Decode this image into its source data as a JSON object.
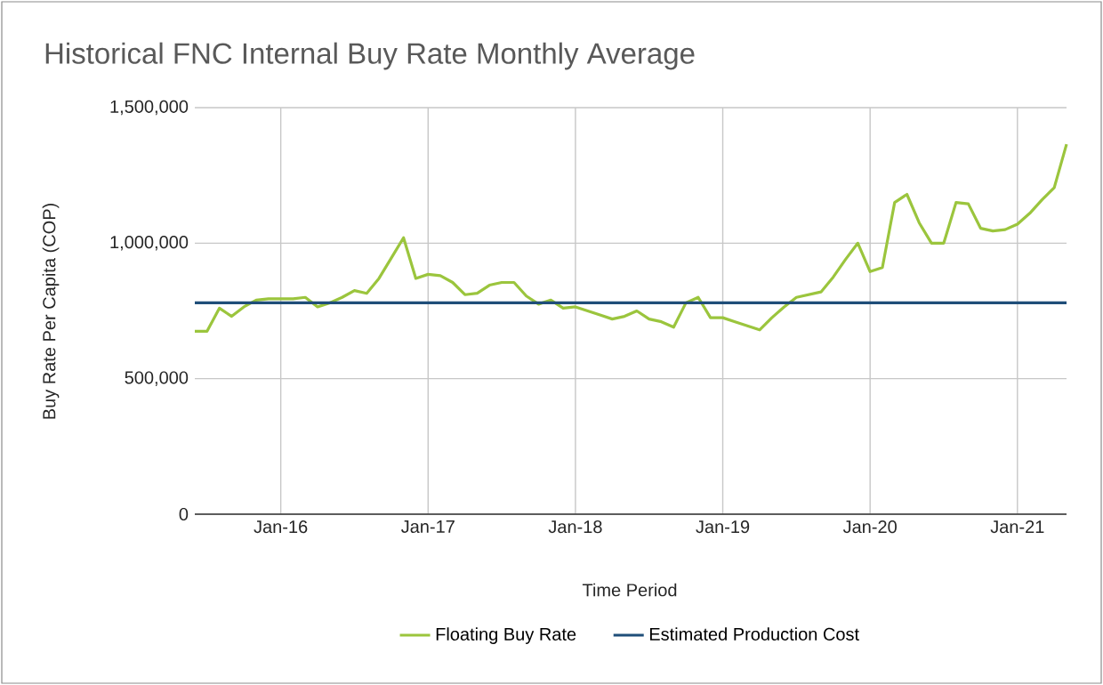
{
  "chart_data": {
    "type": "line",
    "title": "Historical FNC Internal Buy Rate Monthly Average",
    "xlabel": "Time Period",
    "ylabel": "Buy Rate Per Capita (COP)",
    "series": [
      {
        "name": "Floating Buy Rate",
        "color": "#9bc53d",
        "x": [
          "2015-06",
          "2015-07",
          "2015-08",
          "2015-09",
          "2015-10",
          "2015-11",
          "2015-12",
          "2016-01",
          "2016-02",
          "2016-03",
          "2016-04",
          "2016-05",
          "2016-06",
          "2016-07",
          "2016-08",
          "2016-09",
          "2016-10",
          "2016-11",
          "2016-12",
          "2017-01",
          "2017-02",
          "2017-03",
          "2017-04",
          "2017-05",
          "2017-06",
          "2017-07",
          "2017-08",
          "2017-09",
          "2017-10",
          "2017-11",
          "2017-12",
          "2018-01",
          "2018-02",
          "2018-03",
          "2018-04",
          "2018-05",
          "2018-06",
          "2018-07",
          "2018-08",
          "2018-09",
          "2018-10",
          "2018-11",
          "2018-12",
          "2019-01",
          "2019-02",
          "2019-03",
          "2019-04",
          "2019-05",
          "2019-06",
          "2019-07",
          "2019-08",
          "2019-09",
          "2019-10",
          "2019-11",
          "2019-12",
          "2020-01",
          "2020-02",
          "2020-03",
          "2020-04",
          "2020-05",
          "2020-06",
          "2020-07",
          "2020-08",
          "2020-09",
          "2020-10",
          "2020-11",
          "2020-12",
          "2021-01",
          "2021-02",
          "2021-03",
          "2021-04",
          "2021-05"
        ],
        "values": [
          675000,
          675000,
          760000,
          730000,
          765000,
          790000,
          795000,
          795000,
          795000,
          800000,
          765000,
          780000,
          800000,
          825000,
          815000,
          870000,
          945000,
          1020000,
          870000,
          885000,
          880000,
          855000,
          810000,
          815000,
          845000,
          855000,
          855000,
          805000,
          775000,
          790000,
          760000,
          765000,
          750000,
          735000,
          720000,
          730000,
          750000,
          720000,
          710000,
          690000,
          780000,
          800000,
          725000,
          725000,
          710000,
          695000,
          680000,
          725000,
          765000,
          800000,
          810000,
          820000,
          875000,
          940000,
          1000000,
          895000,
          910000,
          1150000,
          1180000,
          1075000,
          1000000,
          1000000,
          1150000,
          1145000,
          1055000,
          1045000,
          1050000,
          1070000,
          1110000,
          1160000,
          1205000,
          1365000
        ]
      },
      {
        "name": "Estimated Production Cost",
        "color": "#1f4e79",
        "x": [
          "2015-06",
          "2021-05"
        ],
        "values": [
          780000,
          780000
        ]
      }
    ],
    "xlim": [
      "2015-06",
      "2021-05"
    ],
    "xticks": [
      {
        "value": "2016-01",
        "label": "Jan-16"
      },
      {
        "value": "2017-01",
        "label": "Jan-17"
      },
      {
        "value": "2018-01",
        "label": "Jan-18"
      },
      {
        "value": "2019-01",
        "label": "Jan-19"
      },
      {
        "value": "2020-01",
        "label": "Jan-20"
      },
      {
        "value": "2021-01",
        "label": "Jan-21"
      }
    ],
    "ylim": [
      0,
      1500000
    ],
    "yticks": [
      0,
      {
        "value": 500000,
        "label": "500,000"
      },
      {
        "value": 1000000,
        "label": "1,000,000"
      },
      {
        "value": 1500000,
        "label": "1,500,000"
      }
    ],
    "grid": true,
    "legend": "bottom",
    "marker": "none",
    "line_style": "solid"
  }
}
